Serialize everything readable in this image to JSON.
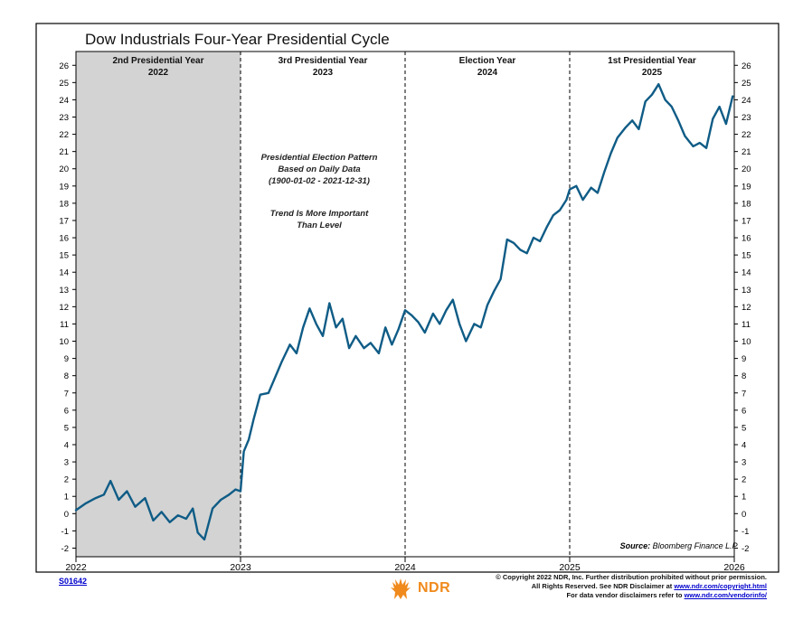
{
  "chart_data": {
    "type": "line",
    "title": "Dow Industrials Four-Year Presidential Cycle",
    "xlabel": "",
    "ylabel": "",
    "ylim": [
      -2.5,
      26.8
    ],
    "y_ticks": [
      -2,
      -1,
      0,
      1,
      2,
      3,
      4,
      5,
      6,
      7,
      8,
      9,
      10,
      11,
      12,
      13,
      14,
      15,
      16,
      17,
      18,
      19,
      20,
      21,
      22,
      23,
      24,
      25,
      26
    ],
    "x_ticks": [
      "2022",
      "2023",
      "2024",
      "2025",
      "2026"
    ],
    "grid": false,
    "line_color": "#0f5c86",
    "shade_color": "#d3d3d3",
    "panels": [
      {
        "line1": "2nd Presidential Year",
        "line2": "2022",
        "shaded": true
      },
      {
        "line1": "3rd Presidential Year",
        "line2": "2023",
        "shaded": false
      },
      {
        "line1": "Election Year",
        "line2": "2024",
        "shaded": false
      },
      {
        "line1": "1st Presidential Year",
        "line2": "2025",
        "shaded": false
      }
    ],
    "annotations": {
      "pattern": [
        "Presidential Election Pattern",
        "Based on Daily Data",
        "(1900-01-02 - 2021-12-31)"
      ],
      "trend": [
        "Trend Is More Important",
        "Than Level"
      ]
    },
    "series": [
      {
        "x": [
          2022.0,
          2022.06,
          2022.12,
          2022.17,
          2022.21,
          2022.26,
          2022.31,
          2022.36,
          2022.42,
          2022.47,
          2022.52,
          2022.57,
          2022.62,
          2022.67,
          2022.71,
          2022.74,
          2022.78,
          2022.83,
          2022.88,
          2022.93,
          2022.97,
          2023.0,
          2023.02,
          2023.05,
          2023.08,
          2023.12,
          2023.17,
          2023.21,
          2023.25,
          2023.3,
          2023.34,
          2023.38,
          2023.42,
          2023.46,
          2023.5,
          2023.54,
          2023.58,
          2023.62,
          2023.66,
          2023.7,
          2023.75,
          2023.79,
          2023.84,
          2023.88,
          2023.92,
          2023.96,
          2024.0,
          2024.04,
          2024.08,
          2024.12,
          2024.17,
          2024.21,
          2024.25,
          2024.29,
          2024.33,
          2024.37,
          2024.42,
          2024.46,
          2024.5,
          2024.54,
          2024.58,
          2024.62,
          2024.66,
          2024.7,
          2024.74,
          2024.78,
          2024.82,
          2024.86,
          2024.9,
          2024.94,
          2024.98,
          2025.0,
          2025.04,
          2025.08,
          2025.13,
          2025.17,
          2025.21,
          2025.25,
          2025.29,
          2025.34,
          2025.38,
          2025.42,
          2025.46,
          2025.5,
          2025.54,
          2025.58,
          2025.62,
          2025.66,
          2025.7,
          2025.75,
          2025.79,
          2025.83,
          2025.87,
          2025.91,
          2025.95,
          2025.99
        ],
        "values": [
          0.2,
          0.6,
          0.9,
          1.1,
          1.9,
          0.8,
          1.3,
          0.4,
          0.9,
          -0.4,
          0.1,
          -0.5,
          -0.1,
          -0.3,
          0.3,
          -1.1,
          -1.5,
          0.3,
          0.8,
          1.1,
          1.4,
          1.3,
          3.6,
          4.3,
          5.5,
          6.9,
          7.0,
          7.9,
          8.8,
          9.8,
          9.3,
          10.8,
          11.9,
          11.0,
          10.3,
          12.2,
          10.8,
          11.3,
          9.6,
          10.3,
          9.6,
          9.9,
          9.3,
          10.8,
          9.8,
          10.7,
          11.8,
          11.5,
          11.1,
          10.5,
          11.6,
          11.0,
          11.8,
          12.4,
          11.0,
          10.0,
          11.0,
          10.8,
          12.1,
          12.9,
          13.6,
          15.9,
          15.7,
          15.3,
          15.1,
          16.0,
          15.8,
          16.6,
          17.3,
          17.6,
          18.2,
          18.8,
          19.0,
          18.2,
          18.9,
          18.6,
          19.8,
          20.9,
          21.8,
          22.4,
          22.8,
          22.3,
          23.9,
          24.3,
          24.9,
          24.0,
          23.6,
          22.8,
          21.9,
          21.3,
          21.5,
          21.2,
          22.9,
          23.6,
          22.6,
          24.2
        ]
      }
    ],
    "source_label": "Source:",
    "source_text": "Bloomberg Finance L.P."
  },
  "footer": {
    "chart_id": "S01642",
    "logo_text": "NDR",
    "copyright_line1": "© Copyright 2022 NDR, Inc. Further distribution prohibited without prior permission.",
    "copyright_line2_prefix": "All Rights Reserved. See NDR Disclaimer at",
    "copyright_line2_link": "www.ndr.com/copyright.html",
    "copyright_line3_prefix": "For data vendor disclaimers refer to",
    "copyright_line3_link": "www.ndr.com/vendorinfo/"
  }
}
